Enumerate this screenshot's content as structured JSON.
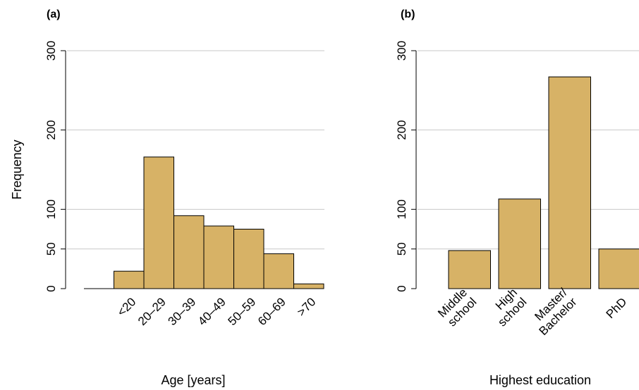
{
  "colors": {
    "bar_fill": "#D7B266",
    "grid": "#c8c8c8",
    "axis": "#000000"
  },
  "chart_data": [
    {
      "type": "bar",
      "panel_label": "(a)",
      "title": "",
      "xlabel": "Age [years]",
      "ylabel": "Frequency",
      "categories": [
        "<20",
        "20–29",
        "30–39",
        "40–49",
        "50–59",
        "60–69",
        ">70"
      ],
      "values": [
        22,
        166,
        92,
        79,
        75,
        44,
        6
      ],
      "ylim": [
        0,
        300
      ],
      "yticks": [
        0,
        50,
        100,
        200,
        300
      ],
      "grid": true,
      "legend": false
    },
    {
      "type": "bar",
      "panel_label": "(b)",
      "title": "",
      "xlabel": "Highest education",
      "ylabel": "",
      "categories": [
        "Middle\nschool",
        "High\nschool",
        "Master/\nBachelor",
        "PhD"
      ],
      "values": [
        48,
        113,
        267,
        50
      ],
      "ylim": [
        0,
        300
      ],
      "yticks": [
        0,
        50,
        100,
        200,
        300
      ],
      "grid": true,
      "legend": false
    }
  ]
}
